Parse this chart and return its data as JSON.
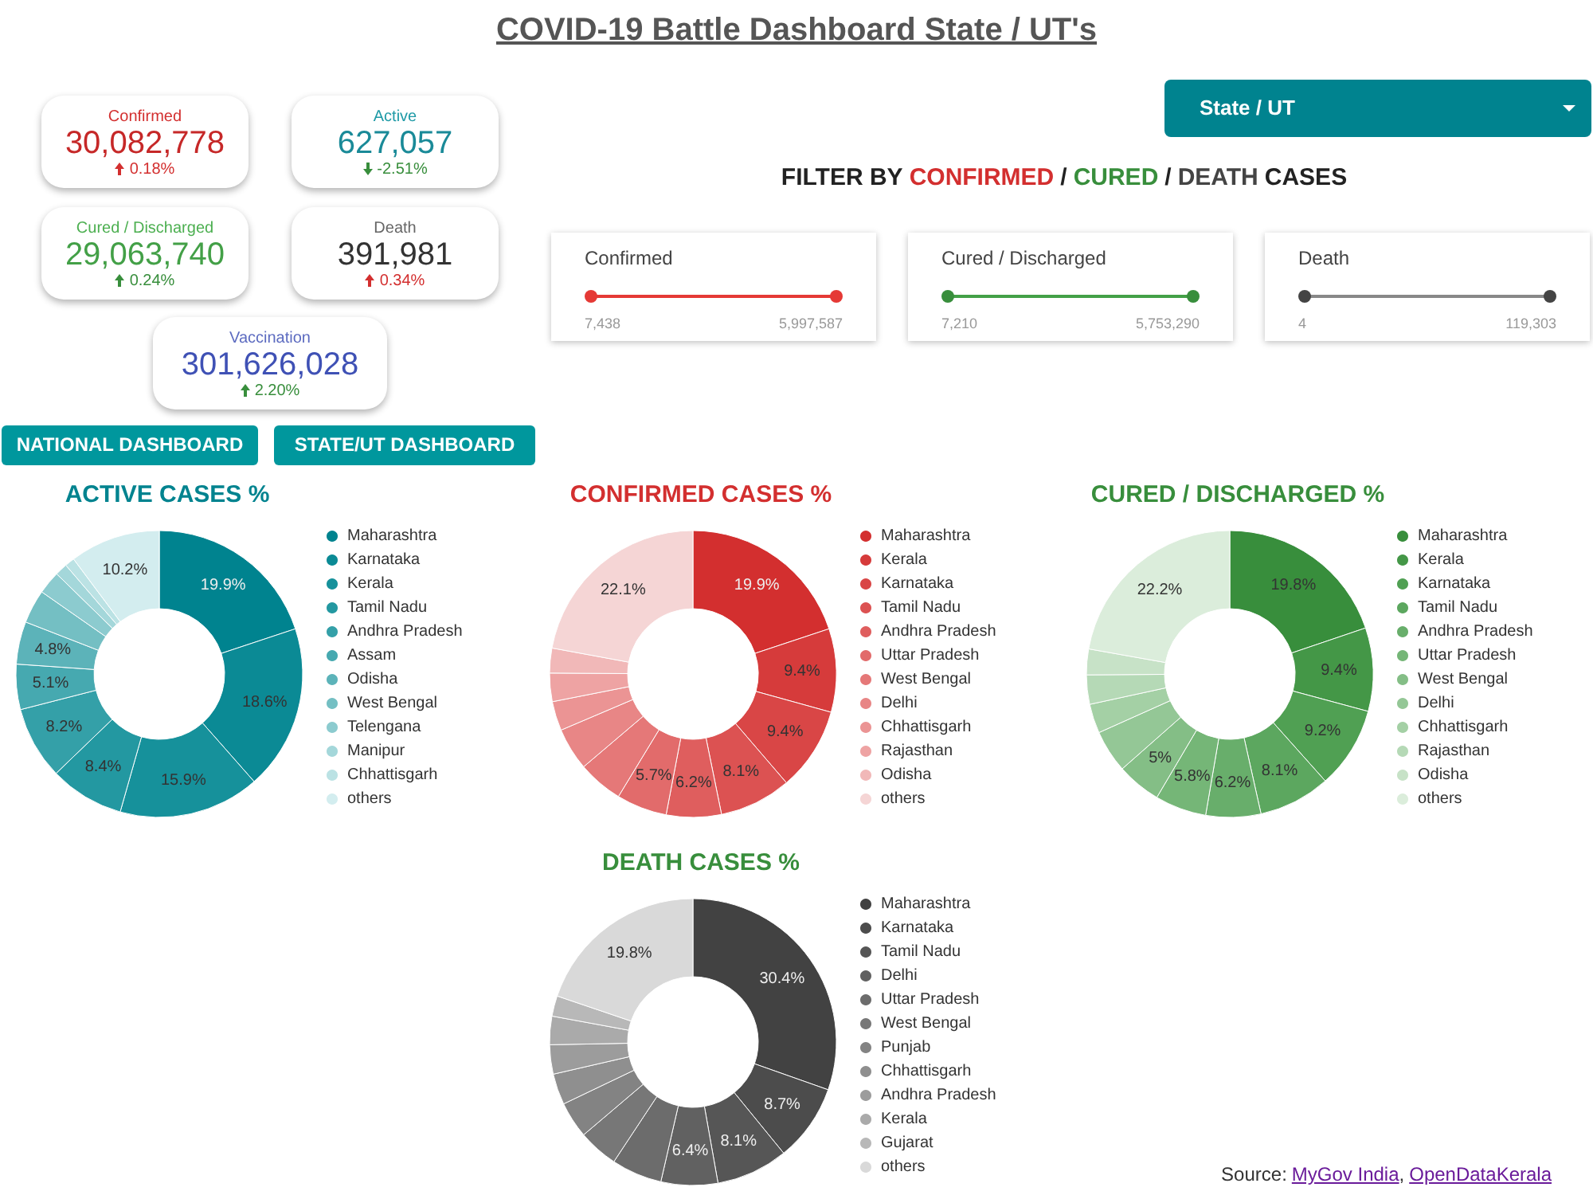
{
  "chart_data": [
    {
      "type": "other",
      "title": "COVID-19 Battle Dashboard State / UT's",
      "annotations": [
        "Confirmed",
        "30,082,778",
        "0.18%",
        "Active",
        "627,057",
        "-2.51%",
        "Cured / Discharged",
        "29,063,740",
        "0.24%",
        "Death",
        "391,981",
        "0.34%",
        "Vaccination",
        "301,626,028",
        "2.20%",
        "NATIONAL DASHBOARD",
        "STATE/UT DASHBOARD",
        "State / UT",
        "FILTER BY",
        "CONFIRMED",
        "/",
        "CURED",
        "/",
        "DEATH",
        "CASES",
        "Confirmed",
        "7,438",
        "5,997,587",
        "Cured / Discharged",
        "7,210",
        "5,753,290",
        "Death",
        "4",
        "119,303",
        "Source:",
        "MyGov India",
        ",",
        "OpenDataKerala"
      ]
    },
    {
      "type": "donut",
      "title": "ACTIVE CASES %",
      "legend": "right",
      "categories": [
        "Maharashtra",
        "Karnataka",
        "Kerala",
        "Tamil Nadu",
        "Andhra Pradesh",
        "Assam",
        "Odisha",
        "West Bengal",
        "Telengana",
        "Manipur",
        "Chhattisgarh",
        "others"
      ],
      "values": [
        19.9,
        18.6,
        15.9,
        8.4,
        8.2,
        5.1,
        4.8,
        3.8,
        2.6,
        1.4,
        1.1,
        10.2
      ],
      "value_labels": [
        "19.9%",
        "18.6%",
        "15.9%",
        "8.4%",
        "8.2%",
        "5.1%",
        "4.8%",
        null,
        null,
        null,
        null,
        "10.2%"
      ],
      "colors": [
        "#00838f",
        "#0b8a95",
        "#16919b",
        "#2398a1",
        "#34a0a8",
        "#46a9b0",
        "#5cb3b9",
        "#74bfc3",
        "#8ccbcf",
        "#a4d7da",
        "#bbe2e4",
        "#d3edef"
      ]
    },
    {
      "type": "donut",
      "title": "CONFIRMED CASES %",
      "legend": "right",
      "categories": [
        "Maharashtra",
        "Kerala",
        "Karnataka",
        "Tamil Nadu",
        "Andhra Pradesh",
        "Uttar Pradesh",
        "West Bengal",
        "Delhi",
        "Chhattisgarh",
        "Rajasthan",
        "Odisha",
        "others"
      ],
      "values": [
        19.9,
        9.4,
        9.4,
        8.1,
        6.2,
        5.7,
        5.1,
        4.8,
        3.3,
        3.2,
        2.8,
        22.1
      ],
      "value_labels": [
        "19.9%",
        "9.4%",
        "9.4%",
        "8.1%",
        "6.2%",
        "5.7%",
        null,
        null,
        null,
        null,
        null,
        "22.1%"
      ],
      "colors": [
        "#d32f2f",
        "#d63b3b",
        "#d94646",
        "#dc5252",
        "#df5e5e",
        "#e26b6b",
        "#e57878",
        "#e88686",
        "#eb9494",
        "#eea3a3",
        "#f1b8b8",
        "#f5d5d5"
      ]
    },
    {
      "type": "donut",
      "title": "CURED / DISCHARGED %",
      "legend": "right",
      "categories": [
        "Maharashtra",
        "Kerala",
        "Karnataka",
        "Tamil Nadu",
        "Andhra Pradesh",
        "Uttar Pradesh",
        "West Bengal",
        "Delhi",
        "Chhattisgarh",
        "Rajasthan",
        "Odisha",
        "others"
      ],
      "values": [
        19.8,
        9.4,
        9.2,
        8.1,
        6.2,
        5.8,
        5,
        4.8,
        3.3,
        3.3,
        2.9,
        22.2
      ],
      "value_labels": [
        "19.8%",
        "9.4%",
        "9.2%",
        "8.1%",
        "6.2%",
        "5.8%",
        "5%",
        null,
        null,
        null,
        null,
        "22.2%"
      ],
      "colors": [
        "#388e3c",
        "#449747",
        "#50a053",
        "#5ca75f",
        "#68ae6b",
        "#75b677",
        "#84be86",
        "#94c796",
        "#a4d0a5",
        "#b5d9b6",
        "#c7e2c7",
        "#dbeddb"
      ]
    },
    {
      "type": "donut",
      "title": "DEATH CASES %",
      "legend": "right",
      "categories": [
        "Maharashtra",
        "Karnataka",
        "Tamil Nadu",
        "Delhi",
        "Uttar Pradesh",
        "West Bengal",
        "Punjab",
        "Chhattisgarh",
        "Andhra Pradesh",
        "Kerala",
        "Gujarat",
        "others"
      ],
      "values": [
        30.4,
        8.7,
        8.1,
        6.4,
        5.7,
        4.5,
        4.1,
        3.5,
        3.3,
        3.2,
        2.3,
        19.8
      ],
      "value_labels": [
        "30.4%",
        "8.7%",
        "8.1%",
        "6.4%",
        null,
        null,
        null,
        null,
        null,
        null,
        null,
        "19.8%"
      ],
      "colors": [
        "#424242",
        "#4c4c4c",
        "#565656",
        "#616161",
        "#6c6c6c",
        "#777777",
        "#838383",
        "#8f8f8f",
        "#9c9c9c",
        "#aaaaaa",
        "#b8b8b8",
        "#d9d9d9"
      ]
    }
  ]
}
